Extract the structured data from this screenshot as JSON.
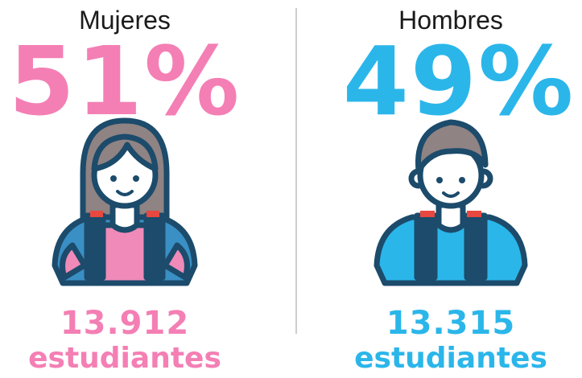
{
  "panels": [
    {
      "label": "Mujeres",
      "percent": "51%",
      "count": "13.912",
      "unit": "estudiantes"
    },
    {
      "label": "Hombres",
      "percent": "49%",
      "count": "13.315",
      "unit": "estudiantes"
    }
  ]
}
